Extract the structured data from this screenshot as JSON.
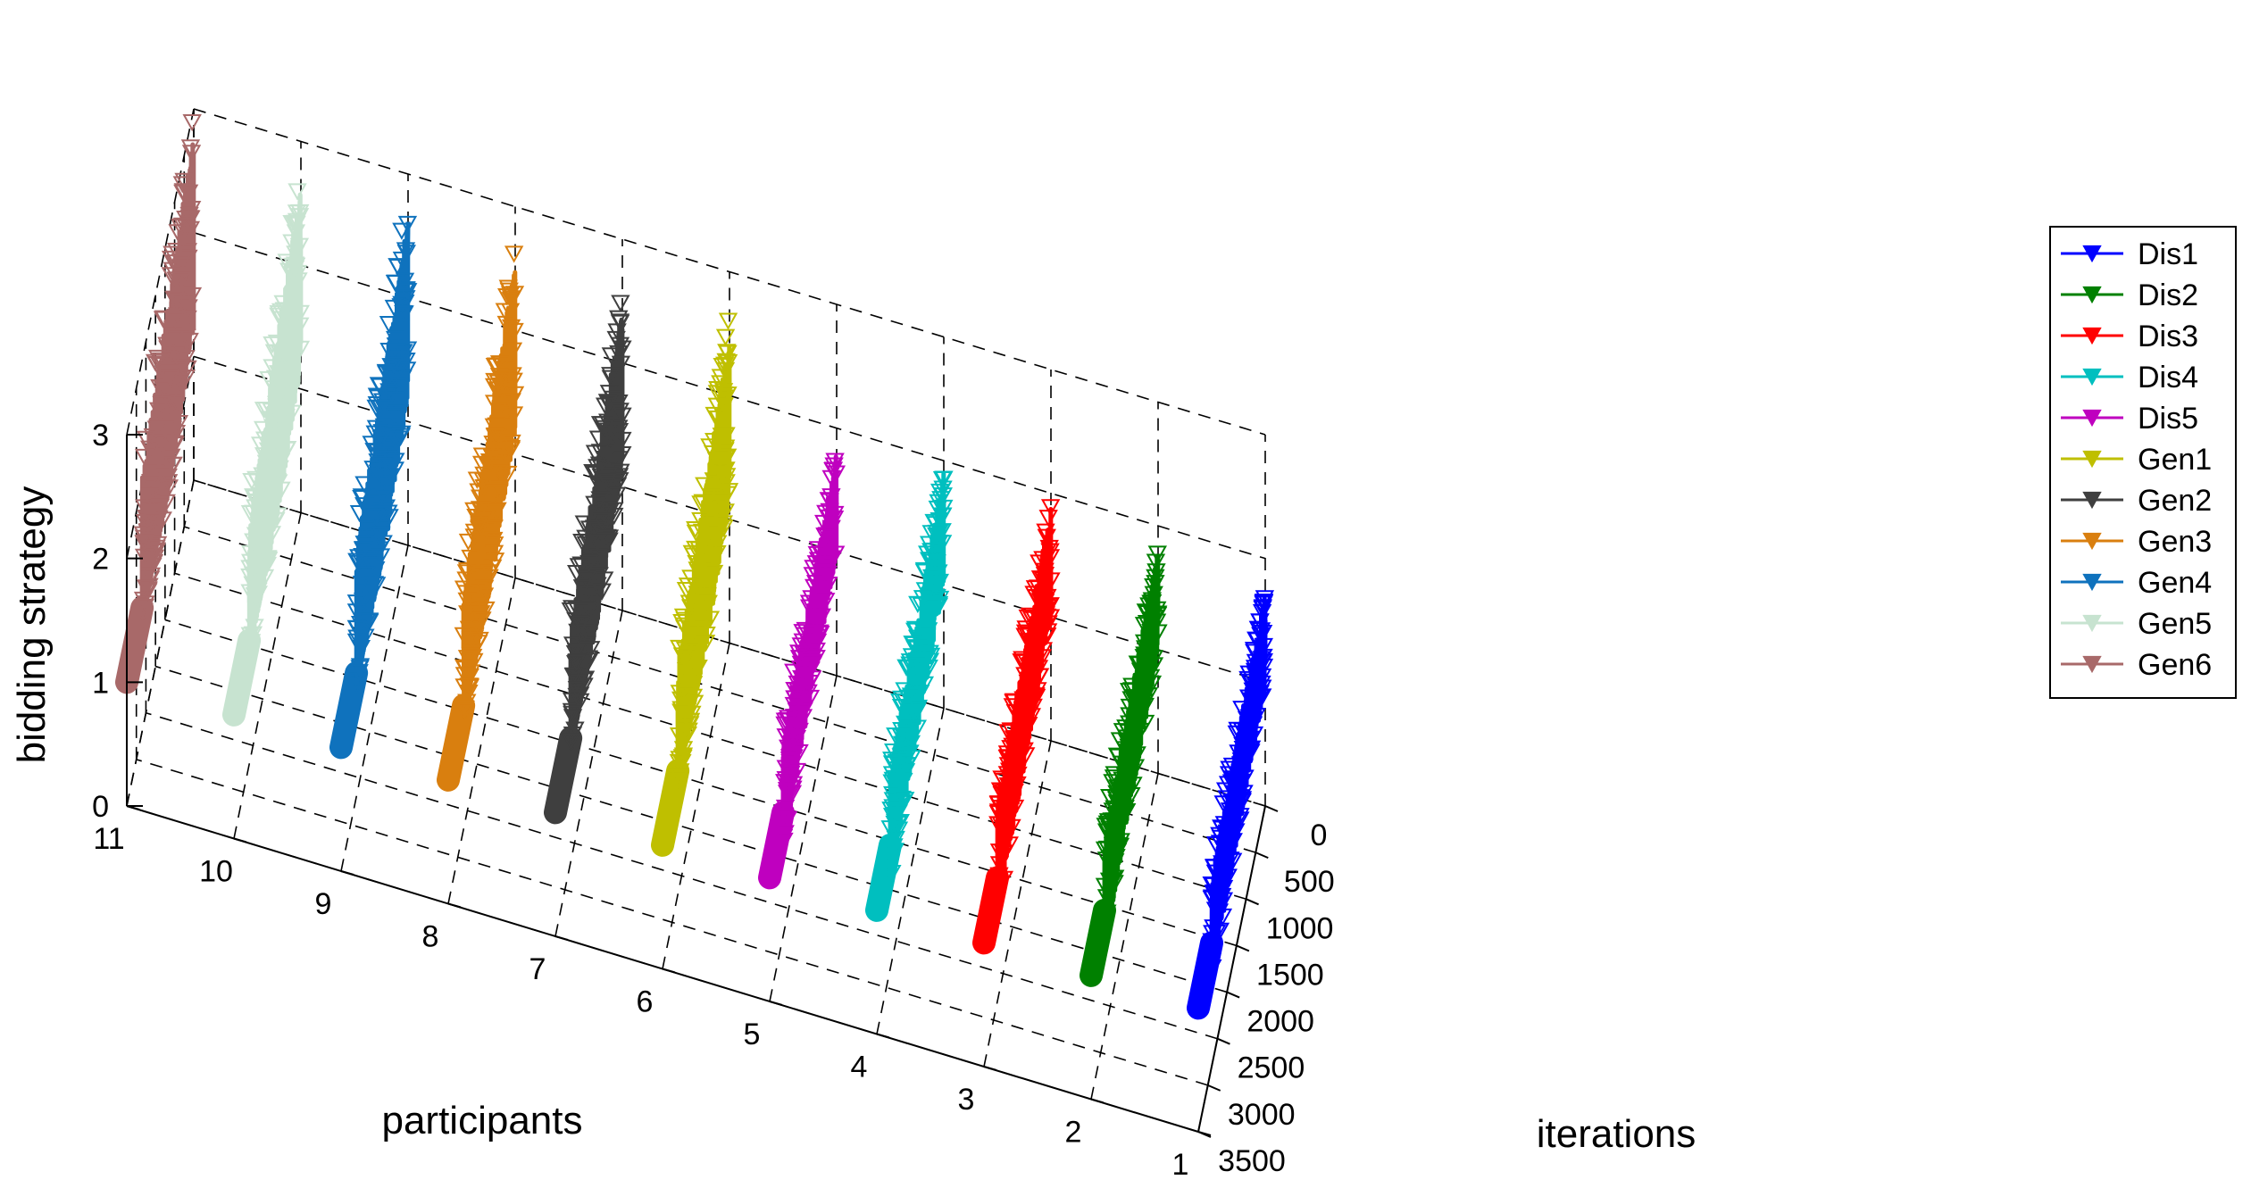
{
  "chart_data": {
    "type": "3d-line",
    "title": "",
    "xlabel": "participants",
    "ylabel": "iterations",
    "zlabel": "bidding strategy",
    "xlim": [
      1,
      11
    ],
    "ylim": [
      0,
      3500
    ],
    "zlim": [
      0,
      3
    ],
    "xticks": [
      "1",
      "2",
      "3",
      "4",
      "5",
      "6",
      "7",
      "8",
      "9",
      "10",
      "11"
    ],
    "yticks": [
      "0",
      "500",
      "1000",
      "1500",
      "2000",
      "2500",
      "3000",
      "3500"
    ],
    "zticks": [
      "0",
      "1",
      "2",
      "3"
    ],
    "marker": "downward-triangle",
    "legend_position": "right",
    "series": [
      {
        "name": "Dis1",
        "participant": 1,
        "color": "#0000ff",
        "start_value": 1.0,
        "jump_iteration": 2800,
        "min": 0.55,
        "max": 1.7
      },
      {
        "name": "Dis2",
        "participant": 2,
        "color": "#008000",
        "start_value": 1.0,
        "jump_iteration": 2800,
        "min": 0.55,
        "max": 1.8
      },
      {
        "name": "Dis3",
        "participant": 3,
        "color": "#ff0000",
        "start_value": 1.0,
        "jump_iteration": 2800,
        "min": 0.6,
        "max": 1.9
      },
      {
        "name": "Dis4",
        "participant": 4,
        "color": "#00bfbf",
        "start_value": 1.0,
        "jump_iteration": 2800,
        "min": 0.6,
        "max": 1.9
      },
      {
        "name": "Dis5",
        "participant": 5,
        "color": "#bf00bf",
        "start_value": 1.0,
        "jump_iteration": 2800,
        "min": 0.6,
        "max": 1.8
      },
      {
        "name": "Gen1",
        "participant": 6,
        "color": "#bfbf00",
        "start_value": 1.0,
        "jump_iteration": 2700,
        "min": 0.9,
        "max": 2.8
      },
      {
        "name": "Gen2",
        "participant": 7,
        "color": "#3f3f3f",
        "start_value": 1.0,
        "jump_iteration": 2700,
        "min": 0.9,
        "max": 2.8
      },
      {
        "name": "Gen3",
        "participant": 8,
        "color": "#d97f0f",
        "start_value": 1.0,
        "jump_iteration": 2700,
        "min": 0.9,
        "max": 2.9
      },
      {
        "name": "Gen4",
        "participant": 9,
        "color": "#0f72bd",
        "start_value": 1.0,
        "jump_iteration": 2700,
        "min": 0.9,
        "max": 3.0
      },
      {
        "name": "Gen5",
        "participant": 10,
        "color": "#c7e3d0",
        "start_value": 1.0,
        "jump_iteration": 2700,
        "min": 0.9,
        "max": 3.0
      },
      {
        "name": "Gen6",
        "participant": 11,
        "color": "#a86969",
        "start_value": 1.0,
        "jump_iteration": 2700,
        "min": 0.9,
        "max": 3.2
      }
    ]
  }
}
